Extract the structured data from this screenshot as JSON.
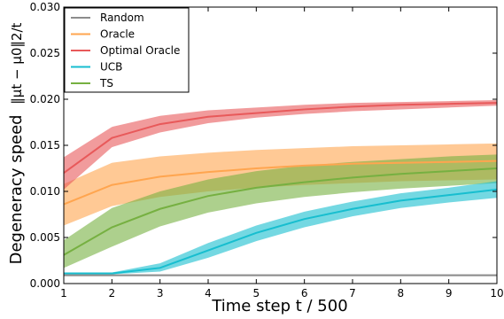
{
  "chart_data": {
    "type": "line",
    "xlabel": "Time step t / 500",
    "ylabel": "Degeneracy speed",
    "ylabel_math": "‖μt − μ0‖2/t",
    "xlim": [
      1,
      10
    ],
    "ylim": [
      0,
      0.03
    ],
    "x_ticks": [
      1,
      2,
      3,
      4,
      5,
      6,
      7,
      8,
      9,
      10
    ],
    "y_ticks": [
      0.0,
      0.005,
      0.01,
      0.015,
      0.02,
      0.025,
      0.03
    ],
    "y_tick_labels": [
      "0.000",
      "0.005",
      "0.010",
      "0.015",
      "0.020",
      "0.025",
      "0.030"
    ],
    "grid": false,
    "legend_position": "top-left",
    "x": [
      1,
      2,
      3,
      4,
      5,
      6,
      7,
      8,
      9,
      10
    ],
    "series": [
      {
        "name": "Random",
        "color": "#8c8c8c",
        "values": [
          0.0009,
          0.0009,
          0.0009,
          0.0009,
          0.0009,
          0.0009,
          0.0009,
          0.0009,
          0.0009,
          0.0009
        ],
        "lower": [
          0.0008,
          0.0008,
          0.0008,
          0.0008,
          0.0008,
          0.0008,
          0.0008,
          0.0008,
          0.0008,
          0.0008
        ],
        "upper": [
          0.001,
          0.001,
          0.001,
          0.001,
          0.001,
          0.001,
          0.001,
          0.001,
          0.001,
          0.001
        ]
      },
      {
        "name": "Oracle",
        "color": "#ffa54f",
        "values": [
          0.0086,
          0.0107,
          0.0116,
          0.0121,
          0.0125,
          0.0128,
          0.013,
          0.0131,
          0.0132,
          0.0133
        ],
        "lower": [
          0.0063,
          0.0084,
          0.0094,
          0.01,
          0.0104,
          0.0107,
          0.0109,
          0.0111,
          0.0112,
          0.0113
        ],
        "upper": [
          0.0108,
          0.0131,
          0.0138,
          0.0142,
          0.0145,
          0.0147,
          0.0149,
          0.015,
          0.0151,
          0.0152
        ]
      },
      {
        "name": "Optimal Oracle",
        "color": "#e8595a",
        "values": [
          0.012,
          0.0158,
          0.0173,
          0.0181,
          0.0185,
          0.0189,
          0.0192,
          0.0194,
          0.0195,
          0.0196
        ],
        "lower": [
          0.0102,
          0.0148,
          0.0164,
          0.0174,
          0.018,
          0.0184,
          0.0187,
          0.0189,
          0.0191,
          0.0193
        ],
        "upper": [
          0.0137,
          0.017,
          0.0182,
          0.0188,
          0.0191,
          0.0194,
          0.0196,
          0.0197,
          0.0198,
          0.0199
        ]
      },
      {
        "name": "UCB",
        "color": "#17becf",
        "values": [
          0.0011,
          0.0011,
          0.0017,
          0.0036,
          0.0055,
          0.007,
          0.0081,
          0.009,
          0.0096,
          0.0102
        ],
        "lower": [
          0.001,
          0.001,
          0.0013,
          0.0028,
          0.0046,
          0.0061,
          0.0073,
          0.0082,
          0.0088,
          0.0093
        ],
        "upper": [
          0.0012,
          0.0012,
          0.0022,
          0.0044,
          0.0063,
          0.0078,
          0.0089,
          0.0098,
          0.0104,
          0.0111
        ]
      },
      {
        "name": "TS",
        "color": "#76b041",
        "values": [
          0.0031,
          0.0061,
          0.0081,
          0.0095,
          0.0104,
          0.011,
          0.0115,
          0.0119,
          0.0122,
          0.0125
        ],
        "lower": [
          0.0017,
          0.004,
          0.0062,
          0.0077,
          0.0087,
          0.0094,
          0.0099,
          0.0103,
          0.0106,
          0.0109
        ],
        "upper": [
          0.0047,
          0.0082,
          0.01,
          0.0113,
          0.0122,
          0.0128,
          0.0132,
          0.0135,
          0.0138,
          0.014
        ]
      }
    ]
  }
}
